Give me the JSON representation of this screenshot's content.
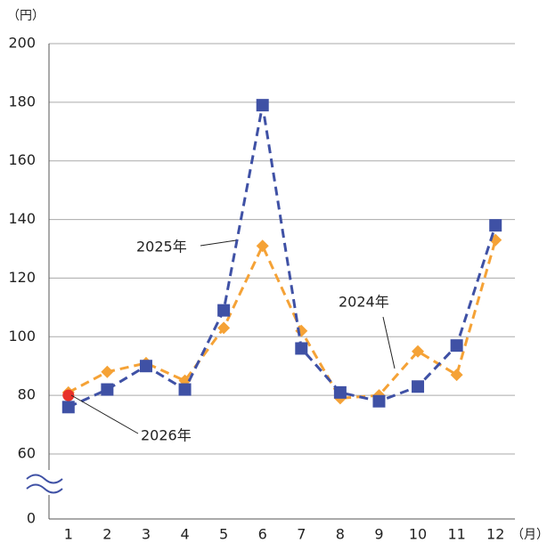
{
  "chart_data": {
    "type": "line",
    "y_unit": "（円）",
    "x_unit": "（月）",
    "categories": [
      "1",
      "2",
      "3",
      "4",
      "5",
      "6",
      "7",
      "8",
      "9",
      "10",
      "11",
      "12"
    ],
    "series": [
      {
        "name": "2025年",
        "color": "#3f51a5",
        "marker": "square",
        "values": [
          76,
          82,
          90,
          82,
          109,
          179,
          96,
          81,
          78,
          83,
          97,
          138
        ]
      },
      {
        "name": "2024年",
        "color": "#f5a236",
        "marker": "diamond",
        "values": [
          81,
          88,
          91,
          85,
          103,
          131,
          102,
          79,
          80,
          95,
          87,
          133
        ]
      },
      {
        "name": "2026年",
        "color": "#e8322a",
        "marker": "circle",
        "values": [
          80,
          null,
          null,
          null,
          null,
          null,
          null,
          null,
          null,
          null,
          null,
          null
        ]
      }
    ],
    "ylim": [
      0,
      200
    ],
    "yticks": [
      0,
      60,
      80,
      100,
      120,
      140,
      160,
      180,
      200
    ],
    "axis_break": [
      0,
      60
    ],
    "grid": true
  }
}
